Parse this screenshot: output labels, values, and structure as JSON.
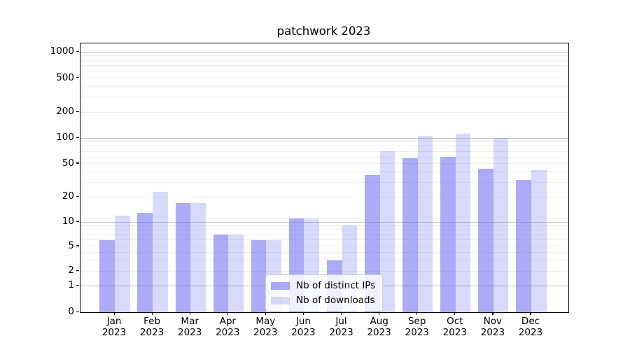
{
  "title": "patchwork 2023",
  "chart_data": {
    "type": "bar",
    "title": "patchwork 2023",
    "categories": [
      "Jan 2023",
      "Feb 2023",
      "Mar 2023",
      "Apr 2023",
      "May 2023",
      "Jun 2023",
      "Jul 2023",
      "Aug 2023",
      "Sep 2023",
      "Oct 2023",
      "Nov 2023",
      "Dec 2023"
    ],
    "series": [
      {
        "name": "Nb of distinct IPs",
        "values": [
          6,
          13,
          17,
          7,
          6,
          11,
          3,
          37,
          58,
          60,
          44,
          32
        ],
        "color": "rgba(102,102,240,0.55)",
        "solid_color": "#a9a9f6"
      },
      {
        "name": "Nb of downloads",
        "values": [
          12,
          23,
          17,
          7,
          6,
          11,
          9,
          70,
          106,
          112,
          100,
          42
        ],
        "color": "rgba(102,102,240,0.25)",
        "solid_color": "#d9d9f8"
      }
    ],
    "xlabel": "",
    "ylabel": "",
    "yscale": "symlog",
    "ylim": [
      0,
      1200
    ],
    "yticks": [
      0,
      1,
      2,
      5,
      10,
      20,
      50,
      100,
      200,
      500,
      1000
    ],
    "grid": true,
    "grid_major_values": [
      1,
      10,
      100,
      1000
    ],
    "grid_minor_values": [
      2,
      3,
      4,
      5,
      6,
      7,
      8,
      9,
      20,
      30,
      40,
      50,
      60,
      70,
      80,
      90,
      200,
      300,
      400,
      500,
      600,
      700,
      800,
      900
    ],
    "grid_major_color": "#bdbdbd",
    "grid_minor_color": "#ececec",
    "axis_color": "#000000",
    "legend_position": "lower center",
    "scale_anchors": [
      [
        0,
        0
      ],
      [
        1,
        0.0977
      ],
      [
        2,
        0.1536
      ],
      [
        5,
        0.2448
      ],
      [
        10,
        0.3359
      ],
      [
        20,
        0.4284
      ],
      [
        50,
        0.5521
      ],
      [
        100,
        0.6484
      ],
      [
        200,
        0.7435
      ],
      [
        500,
        0.8706
      ],
      [
        1000,
        0.968
      ]
    ]
  },
  "legend": {
    "items": [
      {
        "label": "Nb of distinct IPs"
      },
      {
        "label": "Nb of downloads"
      }
    ]
  }
}
